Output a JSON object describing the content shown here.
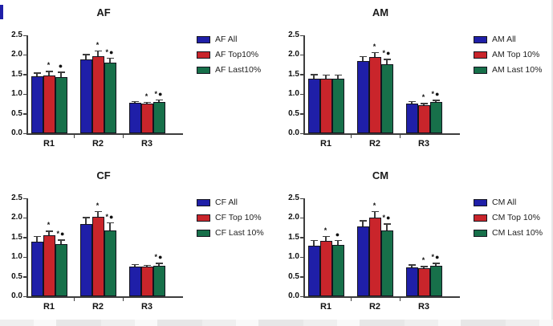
{
  "chart_data": [
    {
      "type": "bar",
      "title": "AF",
      "categories": [
        "R1",
        "R2",
        "R3"
      ],
      "ylim": [
        0,
        2.5
      ],
      "yticks": [
        "0.0",
        "0.5",
        "1.0",
        "1.5",
        "2.0",
        "2.5"
      ],
      "grid": false,
      "legend_position": "right",
      "series": [
        {
          "name": "AF All",
          "color": "#1f1fa8",
          "values": [
            1.45,
            1.89,
            0.77
          ],
          "errors": [
            0.1,
            0.13,
            0.05
          ],
          "markers": [
            "",
            "",
            ""
          ]
        },
        {
          "name": "AF Top10%",
          "color": "#c9252b",
          "values": [
            1.47,
            1.97,
            0.75
          ],
          "errors": [
            0.12,
            0.15,
            0.05
          ],
          "markers": [
            "*",
            "*",
            "*"
          ]
        },
        {
          "name": "AF Last10%",
          "color": "#17704a",
          "values": [
            1.44,
            1.8,
            0.8
          ],
          "errors": [
            0.13,
            0.13,
            0.07
          ],
          "markers": [
            "●",
            "*●",
            "*●"
          ]
        }
      ]
    },
    {
      "type": "bar",
      "title": "AM",
      "categories": [
        "R1",
        "R2",
        "R3"
      ],
      "ylim": [
        0,
        2.5
      ],
      "yticks": [
        "0.0",
        "0.5",
        "1.0",
        "1.5",
        "2.0",
        "2.5"
      ],
      "grid": false,
      "legend_position": "right",
      "series": [
        {
          "name": "AM All",
          "color": "#1f1fa8",
          "values": [
            1.4,
            1.84,
            0.76
          ],
          "errors": [
            0.11,
            0.13,
            0.06
          ],
          "markers": [
            "",
            "",
            ""
          ]
        },
        {
          "name": "AM Top 10%",
          "color": "#c9252b",
          "values": [
            1.4,
            1.94,
            0.72
          ],
          "errors": [
            0.1,
            0.13,
            0.05
          ],
          "markers": [
            "",
            "*",
            "*"
          ]
        },
        {
          "name": "AM Last 10%",
          "color": "#17704a",
          "values": [
            1.39,
            1.76,
            0.8
          ],
          "errors": [
            0.11,
            0.14,
            0.06
          ],
          "markers": [
            "",
            "*●",
            "*●"
          ]
        }
      ]
    },
    {
      "type": "bar",
      "title": "CF",
      "categories": [
        "R1",
        "R2",
        "R3"
      ],
      "ylim": [
        0,
        2.5
      ],
      "yticks": [
        "0.0",
        "0.5",
        "1.0",
        "1.5",
        "2.0",
        "2.5"
      ],
      "grid": false,
      "legend_position": "right",
      "series": [
        {
          "name": "CF All",
          "color": "#1f1fa8",
          "values": [
            1.39,
            1.84,
            0.76
          ],
          "errors": [
            0.15,
            0.18,
            0.06
          ],
          "markers": [
            "",
            "",
            ""
          ]
        },
        {
          "name": "CF Top 10%",
          "color": "#c9252b",
          "values": [
            1.55,
            2.03,
            0.75
          ],
          "errors": [
            0.13,
            0.15,
            0.05
          ],
          "markers": [
            "*",
            "*",
            ""
          ]
        },
        {
          "name": "CF Last 10%",
          "color": "#17704a",
          "values": [
            1.33,
            1.69,
            0.78
          ],
          "errors": [
            0.12,
            0.2,
            0.08
          ],
          "markers": [
            "*●",
            "*●",
            "*●"
          ]
        }
      ]
    },
    {
      "type": "bar",
      "title": "CM",
      "categories": [
        "R1",
        "R2",
        "R3"
      ],
      "ylim": [
        0,
        2.5
      ],
      "yticks": [
        "0.0",
        "0.5",
        "1.0",
        "1.5",
        "2.0",
        "2.5"
      ],
      "grid": false,
      "legend_position": "right",
      "series": [
        {
          "name": "CM All",
          "color": "#1f1fa8",
          "values": [
            1.3,
            1.79,
            0.74
          ],
          "errors": [
            0.14,
            0.15,
            0.07
          ],
          "markers": [
            "",
            "",
            ""
          ]
        },
        {
          "name": "CM Top 10%",
          "color": "#c9252b",
          "values": [
            1.42,
            2.0,
            0.71
          ],
          "errors": [
            0.12,
            0.18,
            0.06
          ],
          "markers": [
            "*",
            "*",
            "*"
          ]
        },
        {
          "name": "CM Last 10%",
          "color": "#17704a",
          "values": [
            1.31,
            1.69,
            0.78
          ],
          "errors": [
            0.13,
            0.17,
            0.08
          ],
          "markers": [
            "●",
            "*●",
            "*●"
          ]
        }
      ]
    }
  ],
  "style": {
    "axis_color": "#3d3d3d",
    "marker_color": "#111111",
    "background": "#ffffff",
    "series_colors": {
      "all": "#1f1fa8",
      "top10": "#c9252b",
      "last10": "#17704a"
    }
  }
}
